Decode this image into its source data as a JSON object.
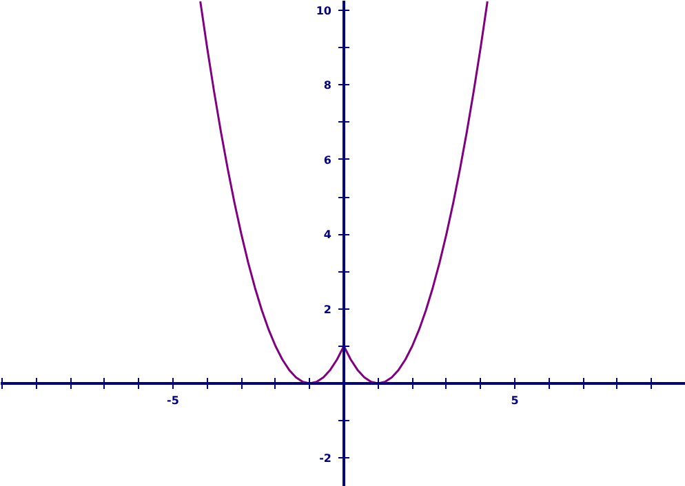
{
  "chart_data": {
    "type": "line",
    "x": [
      -4.2,
      -4.0,
      -3.8,
      -3.6,
      -3.4,
      -3.2,
      -3.0,
      -2.8,
      -2.6,
      -2.4,
      -2.2,
      -2.0,
      -1.8,
      -1.6,
      -1.4,
      -1.2,
      -1.0,
      -0.8,
      -0.6,
      -0.4,
      -0.2,
      0,
      0.2,
      0.4,
      0.6,
      0.8,
      1.0,
      1.2,
      1.4,
      1.6,
      1.8,
      2.0,
      2.2,
      2.4,
      2.6,
      2.8,
      3.0,
      3.2,
      3.4,
      3.6,
      3.8,
      4.0,
      4.2
    ],
    "series": [
      {
        "color": "#800080",
        "values": [
          10.24,
          9,
          7.84,
          6.76,
          5.76,
          4.84,
          4,
          3.24,
          2.56,
          1.96,
          1.44,
          1,
          0.64,
          0.36,
          0.16,
          0.04,
          0,
          0.04,
          0.16,
          0.36,
          0.64,
          1,
          0.64,
          0.36,
          0.16,
          0.04,
          0,
          0.04,
          0.16,
          0.36,
          0.64,
          1,
          1.44,
          1.96,
          2.56,
          3.24,
          4,
          4.84,
          5.76,
          6.76,
          7.84,
          9,
          10.24
        ]
      }
    ],
    "xlim": [
      -10.04,
      10
    ],
    "ylim": [
      -2.77,
      10.26
    ],
    "xticks": [
      {
        "value": -10,
        "label": null
      },
      {
        "value": -9,
        "label": null
      },
      {
        "value": -8,
        "label": null
      },
      {
        "value": -7,
        "label": null
      },
      {
        "value": -6,
        "label": null
      },
      {
        "value": -5,
        "label": "-5"
      },
      {
        "value": -4,
        "label": null
      },
      {
        "value": -3,
        "label": null
      },
      {
        "value": -2,
        "label": null
      },
      {
        "value": -1,
        "label": null
      },
      {
        "value": 0,
        "label": null
      },
      {
        "value": 1,
        "label": null
      },
      {
        "value": 2,
        "label": null
      },
      {
        "value": 3,
        "label": null
      },
      {
        "value": 4,
        "label": null
      },
      {
        "value": 5,
        "label": "5"
      },
      {
        "value": 6,
        "label": null
      },
      {
        "value": 7,
        "label": null
      },
      {
        "value": 8,
        "label": null
      },
      {
        "value": 9,
        "label": null
      }
    ],
    "yticks": [
      {
        "value": -2,
        "label": "-2"
      },
      {
        "value": -1,
        "label": null
      },
      {
        "value": 0,
        "label": null
      },
      {
        "value": 1,
        "label": null
      },
      {
        "value": 2,
        "label": "2"
      },
      {
        "value": 3,
        "label": null
      },
      {
        "value": 4,
        "label": "4"
      },
      {
        "value": 5,
        "label": null
      },
      {
        "value": 6,
        "label": "6"
      },
      {
        "value": 7,
        "label": null
      },
      {
        "value": 8,
        "label": "8"
      },
      {
        "value": 9,
        "label": null
      },
      {
        "value": 10,
        "label": "10"
      }
    ],
    "grid": false,
    "marker": "none",
    "line_style": "solid"
  }
}
